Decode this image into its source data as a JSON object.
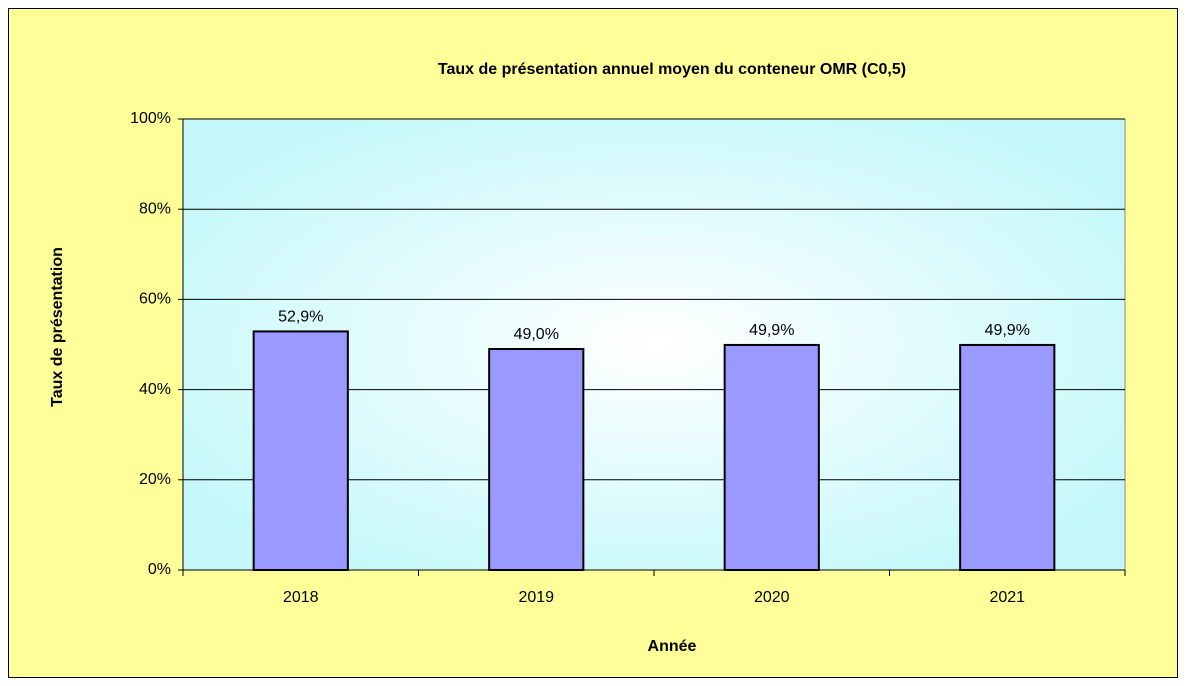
{
  "chart_data": {
    "type": "bar",
    "title": "Taux de présentation annuel moyen du conteneur OMR (C0,5)",
    "x_label": "Année",
    "y_label": "Taux de présentation",
    "categories": [
      "2018",
      "2019",
      "2020",
      "2021"
    ],
    "values": [
      52.9,
      49.0,
      49.9,
      49.9
    ],
    "value_labels": [
      "52,9%",
      "49,0%",
      "49,9%",
      "49,9%"
    ],
    "color": "#9999ff",
    "ylim": [
      0,
      100
    ],
    "yticks": [
      {
        "value": 0,
        "label": "0%"
      },
      {
        "value": 20,
        "label": "20%"
      },
      {
        "value": 40,
        "label": "40%"
      },
      {
        "value": 60,
        "label": "60%"
      },
      {
        "value": 80,
        "label": "80%"
      },
      {
        "value": 100,
        "label": "100%"
      }
    ],
    "grid": true
  }
}
